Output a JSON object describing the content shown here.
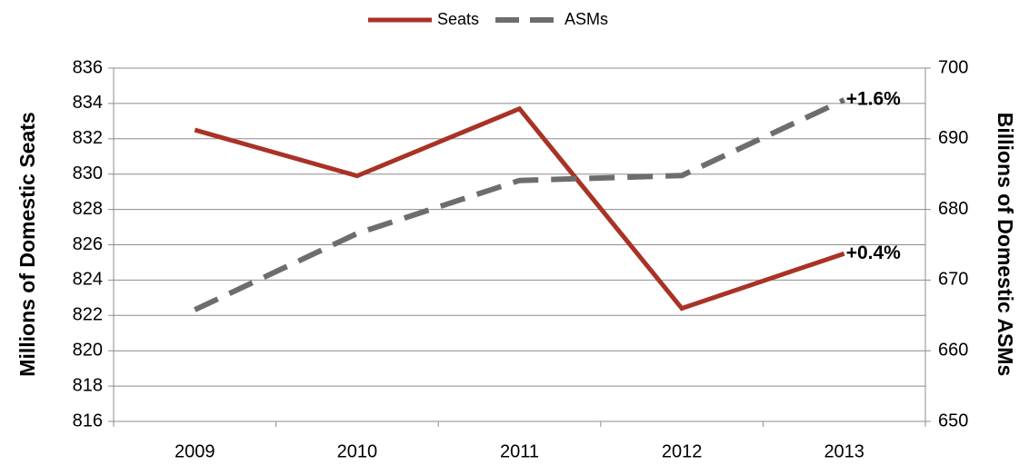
{
  "chart_data": {
    "type": "line",
    "categories": [
      "2009",
      "2010",
      "2011",
      "2012",
      "2013"
    ],
    "series": [
      {
        "name": "Seats",
        "color": "#a93226",
        "values": [
          832.5,
          829.9,
          833.7,
          822.4,
          825.5
        ],
        "annotation": "+0.4%"
      },
      {
        "name": "ASMs",
        "color": "#6d6d6d",
        "axis": "y2",
        "dashed": true,
        "values": [
          665.8,
          676.6,
          684.1,
          684.8,
          695.5
        ],
        "annotation": "+1.6%"
      }
    ],
    "ylabel": "Millions of Domestic Seats",
    "y2label": "Billions of Domestic ASMs",
    "ylim": [
      816,
      836
    ],
    "yticks": [
      816,
      818,
      820,
      822,
      824,
      826,
      828,
      830,
      832,
      834,
      836
    ],
    "y2lim": [
      650,
      700
    ],
    "y2ticks": [
      650,
      660,
      670,
      680,
      690,
      700
    ],
    "grid": true,
    "legend": "top"
  }
}
